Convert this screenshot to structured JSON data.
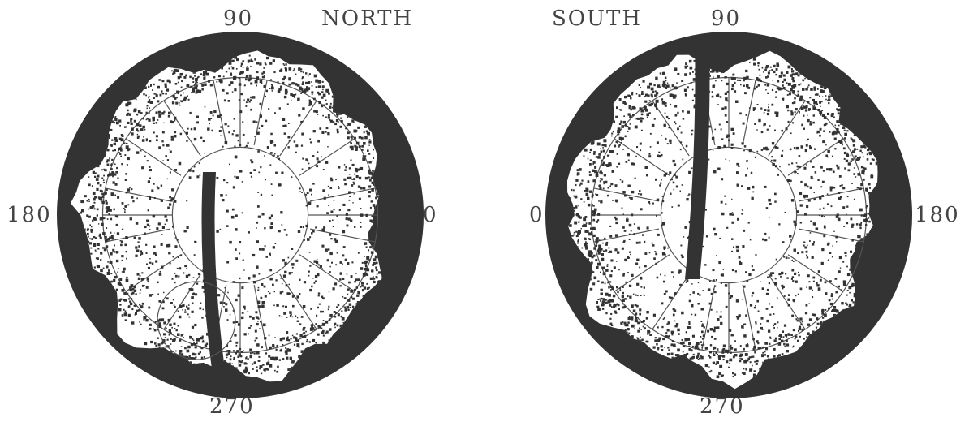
{
  "panels": [
    {
      "hemisphere": "NORTH",
      "labels": {
        "top": "90",
        "bottom": "270",
        "left": "180",
        "right": "0"
      },
      "azimuth_clockwise": false
    },
    {
      "hemisphere": "SOUTH",
      "labels": {
        "top": "90",
        "bottom": "270",
        "left": "0",
        "right": "180"
      },
      "azimuth_clockwise": true
    }
  ],
  "colors": {
    "dark": "#333333",
    "light": "#ffffff",
    "grid": "#555555",
    "text": "#444444"
  }
}
